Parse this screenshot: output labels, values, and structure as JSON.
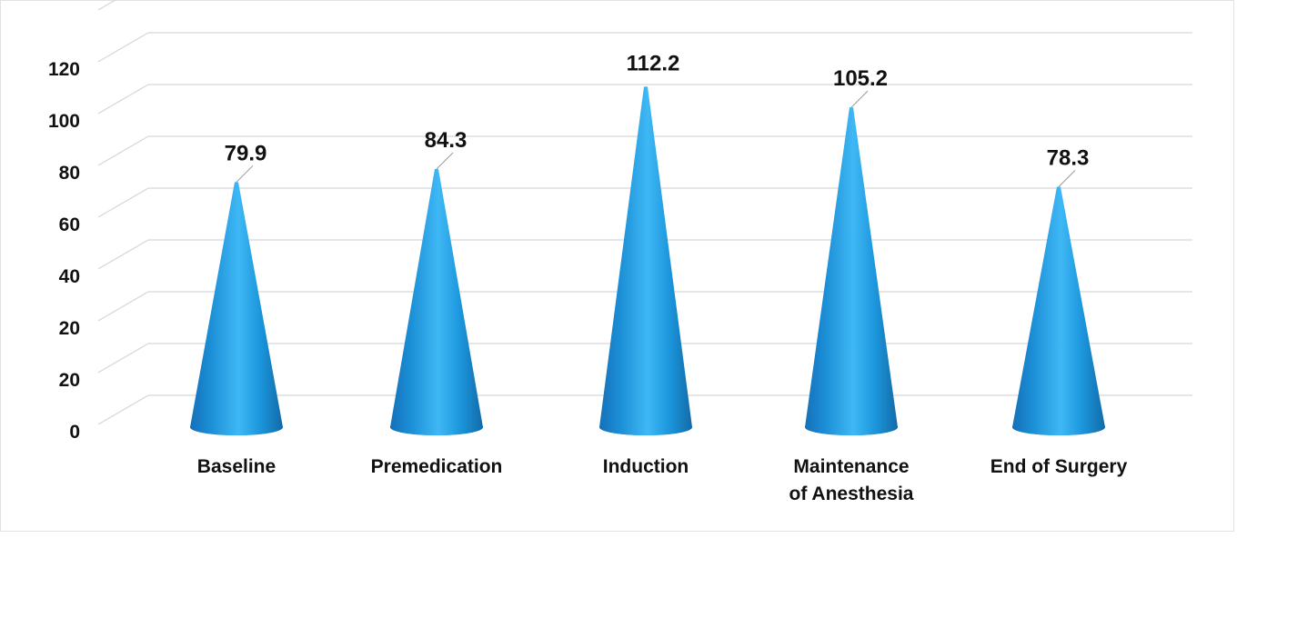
{
  "chart_data": {
    "type": "bar",
    "style": "3d-cone",
    "categories": [
      "Baseline",
      "Premedication",
      "Induction",
      "Maintenance of Anesthesia",
      "End of Surgery"
    ],
    "values": [
      79.9,
      84.3,
      112.2,
      105.2,
      78.3
    ],
    "y_tick_labels": [
      "0",
      "20",
      "20",
      "40",
      "60",
      "80",
      "100",
      "120"
    ],
    "ylim": [
      0,
      140
    ],
    "grid": true,
    "legend": "none",
    "color": "#1e9fe6",
    "title": "",
    "xlabel": "",
    "ylabel": ""
  }
}
